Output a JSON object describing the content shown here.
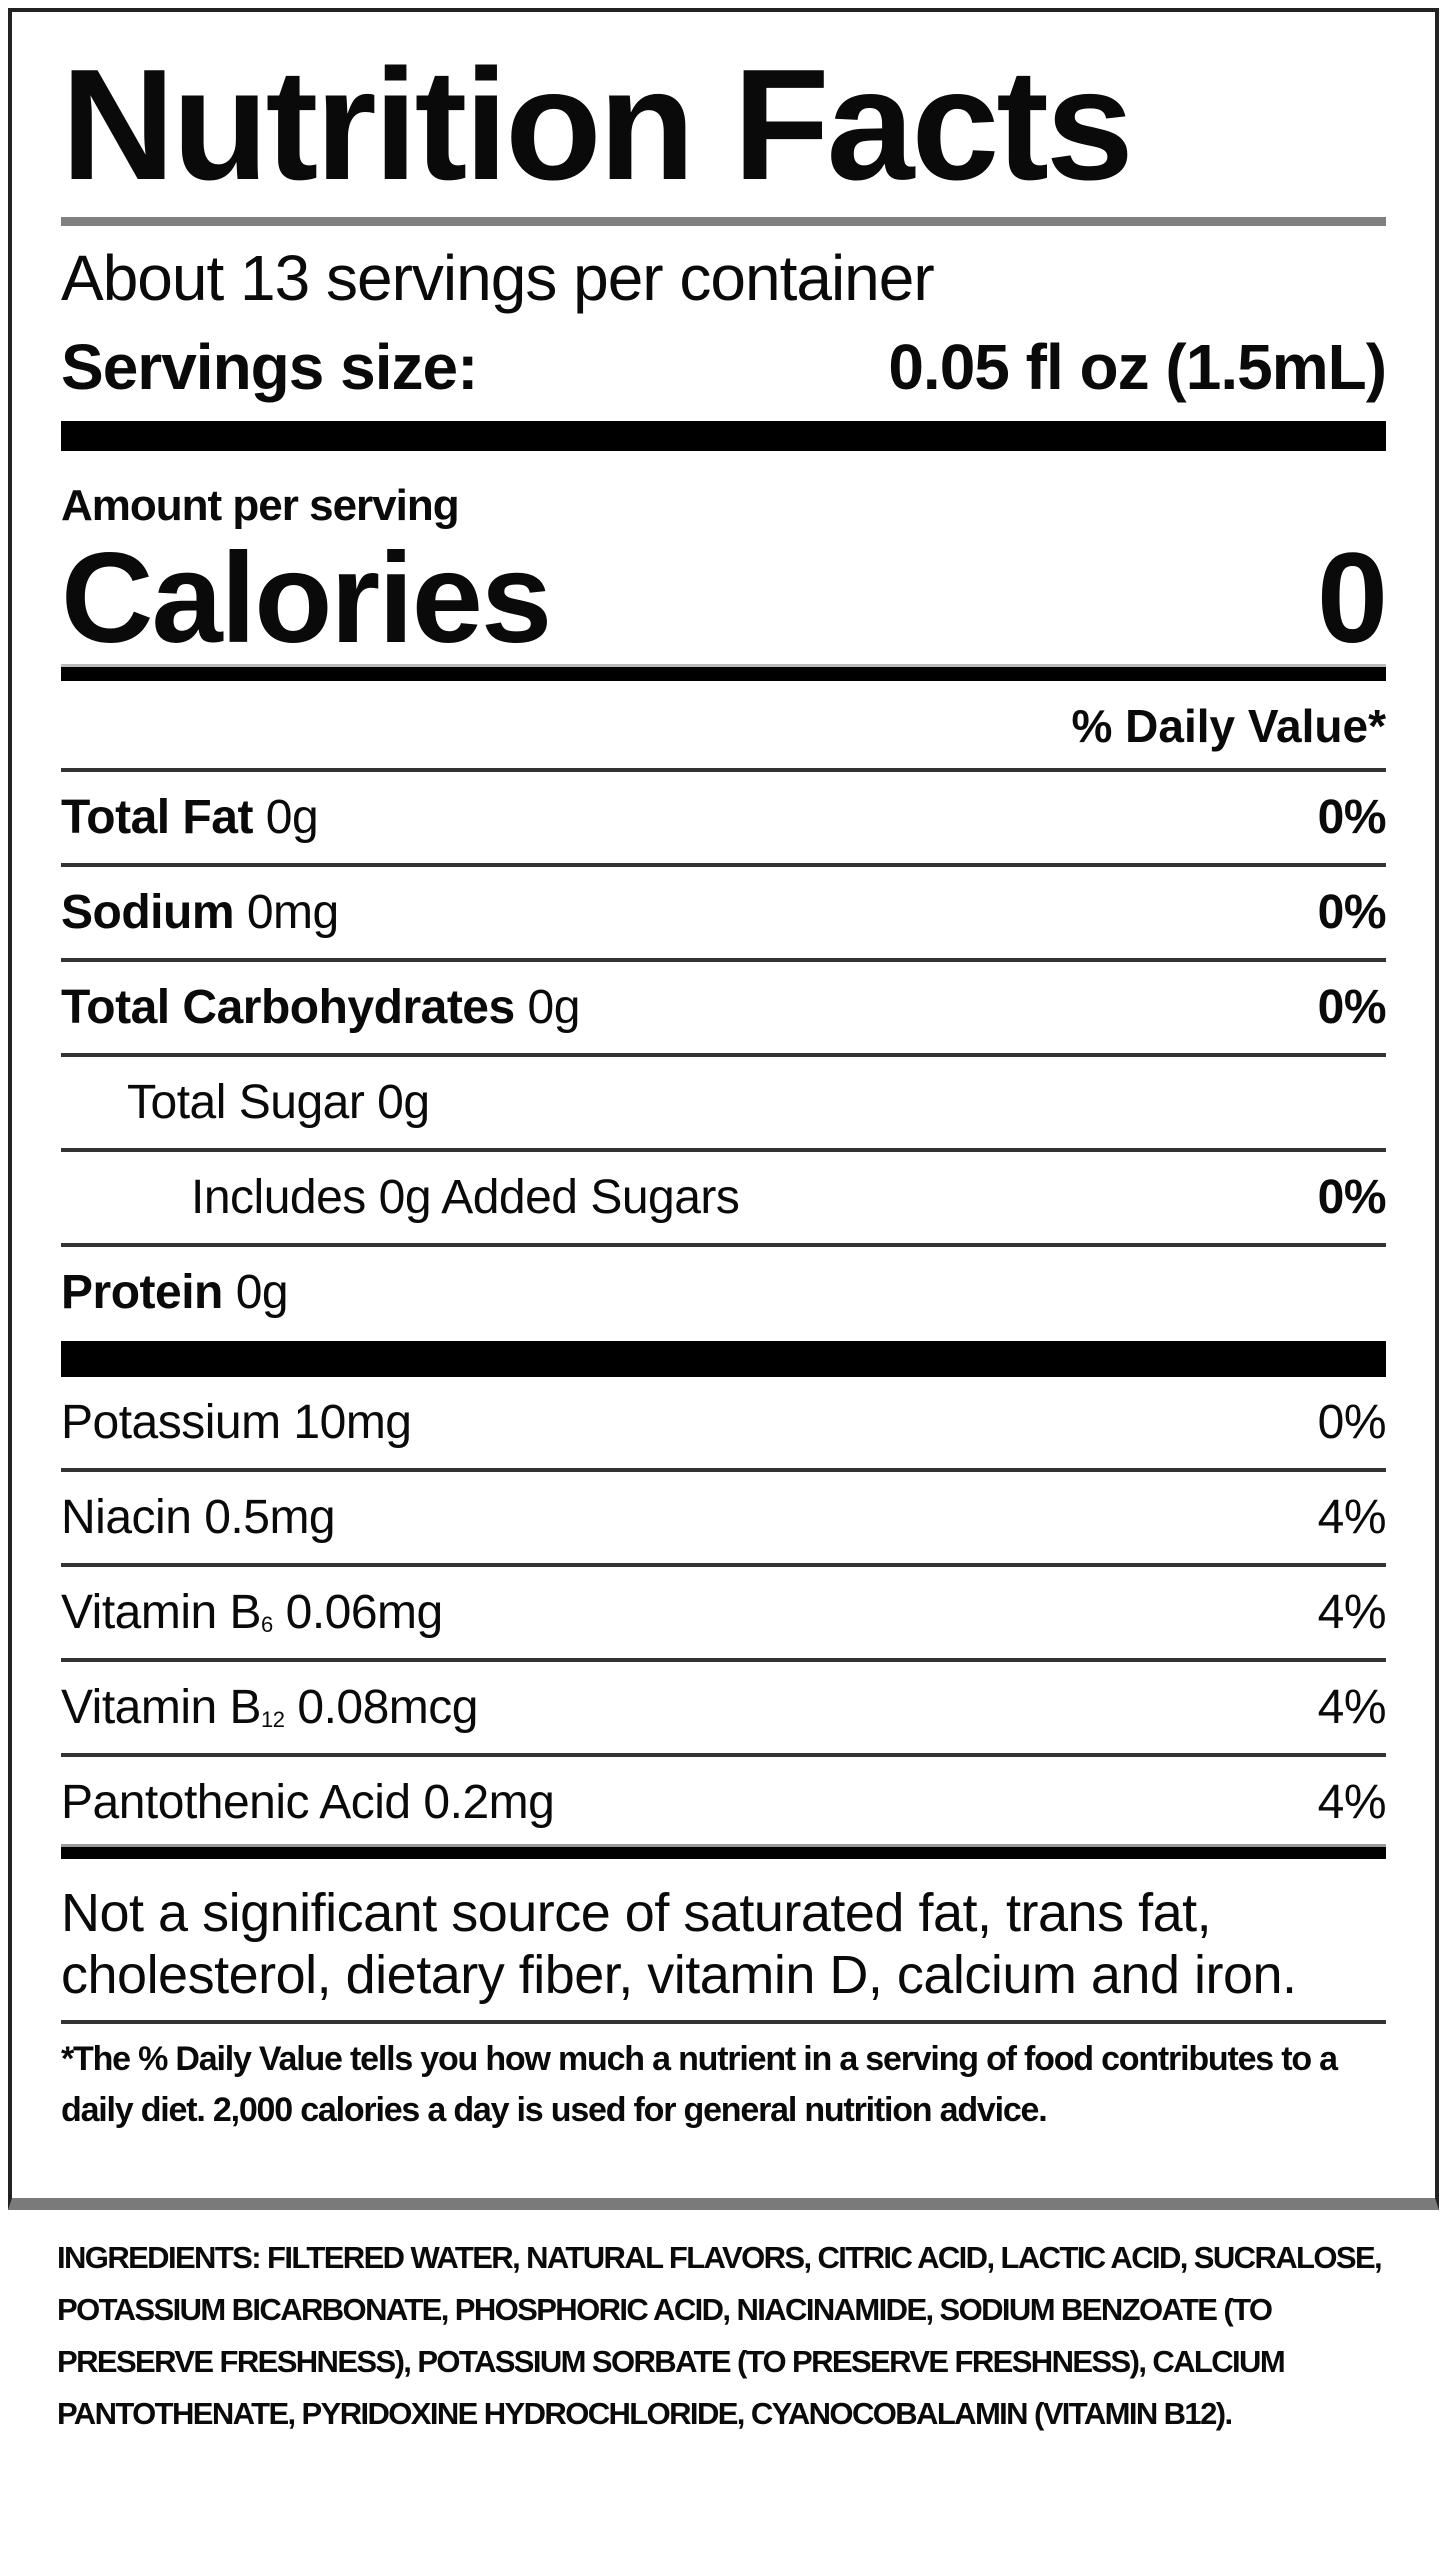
{
  "title": "Nutrition Facts",
  "servings_per_container": "About 13 servings per container",
  "serving_size": {
    "label": "Servings size:",
    "value": "0.05 fl oz (1.5mL)"
  },
  "amount_per_serving": "Amount per serving",
  "calories": {
    "label": "Calories",
    "value": "0"
  },
  "daily_value_header": "% Daily Value*",
  "nutrients": [
    {
      "name": "Total Fat",
      "amount": " 0g",
      "dv": "0%"
    },
    {
      "name": "Sodium",
      "amount": " 0mg",
      "dv": "0%"
    },
    {
      "name": "Total Carbohydrates",
      "amount": " 0g",
      "dv": "0%"
    },
    {
      "name": "Total Sugar 0g",
      "dv": ""
    },
    {
      "name": "Includes 0g Added Sugars",
      "dv": "0%"
    },
    {
      "name": "Protein",
      "amount": " 0g",
      "dv": ""
    }
  ],
  "vitamins": [
    {
      "name": "Potassium 10mg",
      "dv": "0%"
    },
    {
      "name": "Niacin 0.5mg",
      "dv": "4%"
    },
    {
      "name": "Vitamin B",
      "sub": "6",
      "amount": " 0.06mg",
      "dv": "4%"
    },
    {
      "name": "Vitamin B",
      "sub": "12",
      "amount": " 0.08mcg",
      "dv": "4%"
    },
    {
      "name": "Pantothenic Acid 0.2mg",
      "dv": "4%"
    }
  ],
  "not_significant": "Not a significant source of saturated fat, trans fat, cholesterol, dietary fiber, vitamin D, calcium and iron.",
  "footnote": "*The % Daily Value tells you how much a nutrient in a serving of food contributes to a daily diet. 2,000 calories a day is used for general nutrition advice.",
  "ingredients": "INGREDIENTS: FILTERED WATER, NATURAL FLAVORS, CITRIC ACID, LACTIC ACID, SUCRALOSE, POTASSIUM BICARBONATE, PHOSPHORIC ACID, NIACINAMIDE, SODIUM BENZOATE (TO PRESERVE FRESHNESS), POTASSIUM SORBATE (TO PRESERVE FRESHNESS), CALCIUM PANTOTHENATE, PYRIDOXINE HYDROCHLORIDE, CYANOCOBALAMIN (VITAMIN B12)."
}
